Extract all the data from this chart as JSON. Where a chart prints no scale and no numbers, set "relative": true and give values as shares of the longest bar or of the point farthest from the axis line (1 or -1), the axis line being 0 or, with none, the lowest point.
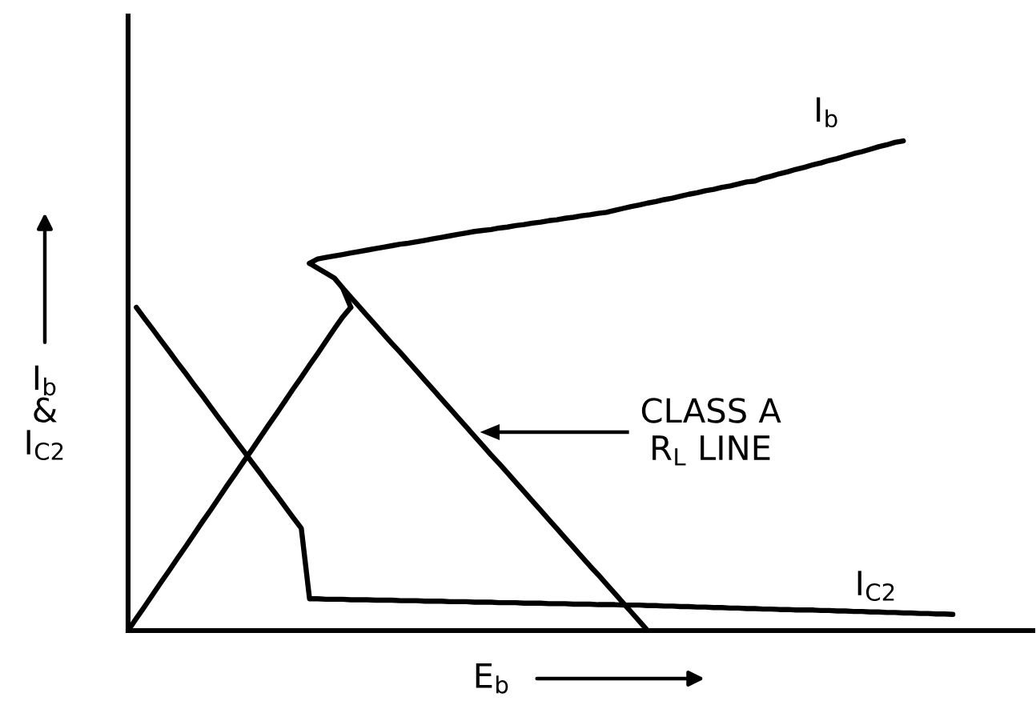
{
  "chart_data": {
    "type": "line",
    "relative": true,
    "line_style": "solid",
    "xlabel": "E$_{b}$",
    "ylabel": "I$_{b}$\n&\nI$_{C2}$",
    "categories": [
      null,
      null,
      null,
      null,
      null,
      null,
      null,
      null,
      null,
      null,
      null,
      null,
      null,
      null,
      null,
      null,
      null,
      null,
      null,
      null,
      null,
      null,
      null,
      null,
      null,
      null,
      null,
      null,
      null,
      null,
      null,
      null,
      null,
      null,
      null,
      null,
      null,
      null,
      null,
      null,
      null,
      null,
      null,
      null,
      null,
      null,
      null,
      null,
      null,
      null,
      null,
      null,
      null,
      null,
      null,
      null,
      null,
      null,
      null,
      null,
      null,
      null,
      null,
      null,
      null,
      null,
      null,
      null,
      null,
      null,
      null,
      null,
      null,
      null,
      null,
      null,
      null,
      null,
      null,
      null,
      null,
      null,
      null,
      null,
      null,
      null,
      null,
      null,
      null,
      null,
      null,
      null,
      null,
      null,
      null,
      null,
      null,
      null,
      null,
      null,
      null
    ],
    "series": [
      {
        "color": "#000000",
        "values": [
          0,
          0.025,
          0.049,
          0.074,
          0.099,
          0.123,
          0.148,
          0.172,
          0.197,
          0.222,
          0.246,
          0.271,
          0.296,
          0.32,
          0.345,
          0.369,
          0.394,
          0.419,
          0.443,
          0.468,
          0.493,
          0.517,
          0.542,
          0.566,
          0.591,
          0.616,
          0.64,
          0.66,
          null,
          null,
          null,
          null,
          null,
          null,
          null,
          null,
          null,
          null,
          null,
          null,
          null,
          null,
          null,
          null,
          null,
          null,
          null,
          null,
          null,
          null,
          null,
          null,
          null,
          null,
          null,
          null,
          null,
          null,
          null,
          null,
          null,
          null,
          null,
          null,
          null,
          null,
          null,
          null,
          null,
          null,
          null,
          null,
          null,
          null,
          null,
          null,
          null,
          null,
          null,
          null,
          null,
          null,
          null,
          null,
          null,
          null,
          null,
          null,
          null,
          null,
          null,
          null,
          null,
          null,
          null,
          null,
          null,
          null,
          null,
          null,
          null
        ]
      },
      {
        "color": "#000000",
        "values": [
          null,
          null,
          null,
          null,
          null,
          null,
          null,
          null,
          null,
          null,
          null,
          null,
          null,
          null,
          null,
          null,
          null,
          null,
          null,
          null,
          null,
          null,
          0.75,
          0.74,
          0.73,
          0.72,
          0.7,
          0.66,
          null,
          null,
          null,
          null,
          null,
          null,
          null,
          null,
          null,
          null,
          null,
          null,
          null,
          null,
          null,
          null,
          null,
          null,
          null,
          null,
          null,
          null,
          null,
          null,
          null,
          null,
          null,
          null,
          null,
          null,
          null,
          null,
          null,
          null,
          null,
          null,
          null,
          null,
          null,
          null,
          null,
          null,
          null,
          null,
          null,
          null,
          null,
          null,
          null,
          null,
          null,
          null,
          null,
          null,
          null,
          null,
          null,
          null,
          null,
          null,
          null,
          null,
          null,
          null,
          null,
          null,
          null,
          null,
          null,
          null,
          null,
          null,
          null
        ]
      },
      {
        "name": "I$_{b}$",
        "color": "#000000",
        "values": [
          null,
          null,
          null,
          null,
          null,
          null,
          null,
          null,
          null,
          null,
          null,
          null,
          null,
          null,
          null,
          null,
          null,
          null,
          null,
          null,
          null,
          null,
          0.75,
          0.759,
          0.762,
          0.765,
          0.768,
          0.771,
          0.774,
          0.777,
          0.78,
          0.783,
          0.786,
          0.789,
          0.791,
          0.794,
          0.797,
          0.8,
          0.803,
          0.806,
          0.809,
          0.812,
          0.815,
          0.817,
          0.819,
          0.822,
          0.824,
          0.827,
          0.829,
          0.832,
          0.834,
          0.837,
          0.839,
          0.842,
          0.844,
          0.847,
          0.849,
          0.852,
          0.854,
          0.858,
          0.862,
          0.866,
          0.869,
          0.873,
          0.876,
          0.88,
          0.883,
          0.887,
          0.891,
          0.894,
          0.898,
          0.901,
          0.905,
          0.908,
          0.912,
          0.916,
          0.918,
          0.924,
          0.928,
          0.933,
          0.937,
          0.942,
          0.946,
          0.951,
          0.955,
          0.96,
          0.964,
          0.969,
          0.974,
          0.978,
          0.983,
          0.988,
          0.992,
          0.997,
          1.0,
          null,
          null,
          null,
          null,
          null,
          null
        ]
      },
      {
        "color": "#000000",
        "values": [
          null,
          null,
          null,
          null,
          null,
          null,
          null,
          null,
          null,
          null,
          null,
          null,
          null,
          null,
          null,
          null,
          null,
          null,
          null,
          null,
          null,
          null,
          null,
          null,
          null,
          null,
          0.7,
          0.681,
          0.662,
          0.643,
          0.624,
          0.605,
          0.586,
          0.568,
          0.549,
          0.53,
          0.511,
          0.492,
          0.473,
          0.454,
          0.435,
          0.416,
          0.397,
          0.378,
          0.359,
          0.341,
          0.322,
          0.303,
          0.284,
          0.265,
          0.246,
          0.227,
          0.208,
          0.189,
          0.17,
          0.151,
          0.132,
          0.114,
          0.095,
          0.076,
          0.057,
          0.038,
          0.019,
          0,
          null,
          null,
          null,
          null,
          null,
          null,
          null,
          null,
          null,
          null,
          null,
          null,
          null,
          null,
          null,
          null,
          null,
          null,
          null,
          null,
          null,
          null,
          null,
          null,
          null,
          null,
          null,
          null,
          null,
          null,
          null,
          null,
          null,
          null,
          null,
          null,
          null
        ]
      },
      {
        "name": "I$_{C2}$",
        "color": "#000000",
        "values": [
          null,
          0.66,
          0.637,
          0.615,
          0.592,
          0.57,
          0.547,
          0.525,
          0.502,
          0.48,
          0.457,
          0.434,
          0.412,
          0.389,
          0.367,
          0.344,
          0.322,
          0.299,
          0.277,
          0.254,
          0.231,
          0.209,
          0.065,
          0.065,
          0.064,
          0.064,
          0.064,
          0.063,
          0.063,
          0.063,
          0.062,
          0.062,
          0.062,
          0.061,
          0.061,
          0.061,
          0.06,
          0.06,
          0.06,
          0.059,
          0.059,
          0.059,
          0.058,
          0.058,
          0.058,
          0.057,
          0.057,
          0.057,
          0.056,
          0.056,
          0.056,
          0.055,
          0.055,
          0.055,
          0.054,
          0.054,
          0.054,
          0.053,
          0.053,
          0.053,
          0.052,
          0.052,
          0.052,
          0.051,
          0.051,
          0.05,
          0.05,
          0.049,
          0.049,
          0.048,
          0.048,
          0.047,
          0.047,
          0.046,
          0.046,
          0.045,
          0.045,
          0.044,
          0.044,
          0.043,
          0.043,
          0.042,
          0.042,
          0.042,
          0.041,
          0.041,
          0.04,
          0.04,
          0.039,
          0.039,
          0.038,
          0.038,
          0.037,
          0.037,
          0.036,
          0.036,
          0.035,
          0.035,
          0.034,
          0.034,
          0.033
        ]
      }
    ],
    "annotations": [
      "CLASS A\nR$_{L}$ LINE"
    ]
  }
}
